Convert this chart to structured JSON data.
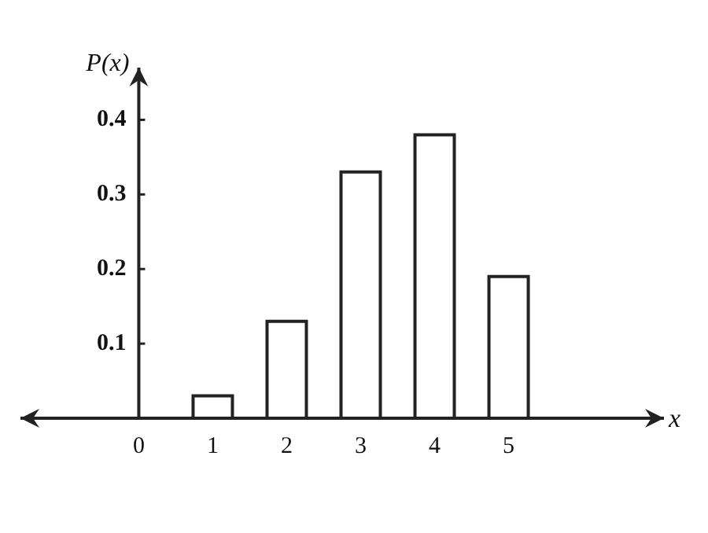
{
  "chart_data": {
    "type": "bar",
    "xlabel": "x",
    "ylabel": "P(x)",
    "x": [
      1,
      2,
      3,
      4,
      5
    ],
    "values": [
      0.03,
      0.13,
      0.33,
      0.38,
      0.19
    ],
    "color": "#ffffff",
    "xlim": [
      -1.6,
      7.1
    ],
    "xticks": [
      0,
      1,
      2,
      3,
      4,
      5
    ],
    "ylim": [
      0,
      0.47
    ],
    "yticks": [
      0.1,
      0.2,
      0.3,
      0.4
    ]
  }
}
